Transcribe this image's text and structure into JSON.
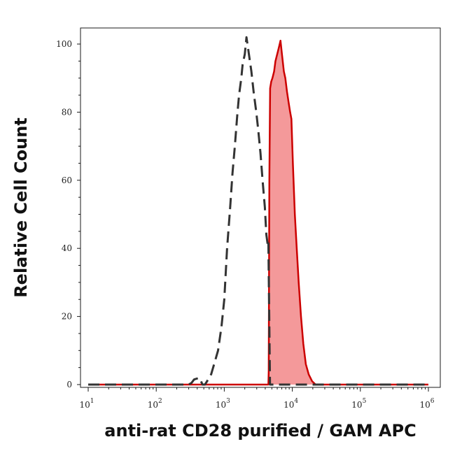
{
  "chart_data": {
    "type": "area",
    "title": "",
    "xlabel": "anti-rat CD28 purified / GAM APC",
    "ylabel": "Relative Cell Count",
    "xscale": "log",
    "xlim": [
      10,
      1000000
    ],
    "ylim": [
      0,
      100
    ],
    "x_ticks": [
      {
        "base": "10",
        "exp": "1",
        "value": 10
      },
      {
        "base": "10",
        "exp": "2",
        "value": 100
      },
      {
        "base": "10",
        "exp": "3",
        "value": 1000
      },
      {
        "base": "10",
        "exp": "4",
        "value": 10000
      },
      {
        "base": "10",
        "exp": "5",
        "value": 100000
      },
      {
        "base": "10",
        "exp": "6",
        "value": 1000000
      }
    ],
    "y_ticks": [
      "0",
      "20",
      "40",
      "60",
      "80",
      "100"
    ],
    "grid": false,
    "series": [
      {
        "style": "dashed",
        "color": "#333333",
        "fill": "none",
        "points": [
          [
            10,
            0
          ],
          [
            300,
            0
          ],
          [
            330,
            0.5
          ],
          [
            360,
            1.5
          ],
          [
            430,
            2
          ],
          [
            480,
            0
          ],
          [
            520,
            0
          ],
          [
            560,
            1
          ],
          [
            640,
            3
          ],
          [
            710,
            6
          ],
          [
            810,
            10
          ],
          [
            910,
            17
          ],
          [
            1000,
            25
          ],
          [
            1100,
            40
          ],
          [
            1220,
            52
          ],
          [
            1320,
            62
          ],
          [
            1430,
            70
          ],
          [
            1550,
            79
          ],
          [
            1650,
            85
          ],
          [
            1780,
            90
          ],
          [
            1860,
            94
          ],
          [
            2000,
            97
          ],
          [
            2120,
            102
          ],
          [
            2300,
            97
          ],
          [
            2500,
            92
          ],
          [
            2700,
            86
          ],
          [
            2950,
            80
          ],
          [
            3150,
            75
          ],
          [
            3400,
            68
          ],
          [
            3650,
            60
          ],
          [
            3950,
            52
          ],
          [
            4150,
            44
          ],
          [
            4350,
            41
          ],
          [
            4450,
            42
          ],
          [
            4700,
            0
          ],
          [
            10000,
            0
          ],
          [
            30000,
            0
          ],
          [
            1000000,
            0
          ]
        ]
      },
      {
        "style": "solid",
        "color": "#cc0000",
        "fill": "#f4999a",
        "points": [
          [
            10,
            0
          ],
          [
            4450,
            0
          ],
          [
            4500,
            4
          ],
          [
            4600,
            60
          ],
          [
            4720,
            87
          ],
          [
            4900,
            89
          ],
          [
            5100,
            90
          ],
          [
            5400,
            92
          ],
          [
            5650,
            95
          ],
          [
            6000,
            97
          ],
          [
            6350,
            99
          ],
          [
            6700,
            101
          ],
          [
            7050,
            97
          ],
          [
            7500,
            92
          ],
          [
            7900,
            90
          ],
          [
            8350,
            86
          ],
          [
            8800,
            83
          ],
          [
            9300,
            80
          ],
          [
            9700,
            78
          ],
          [
            10200,
            65
          ],
          [
            10900,
            50
          ],
          [
            11600,
            40
          ],
          [
            12400,
            30
          ],
          [
            13400,
            20
          ],
          [
            14500,
            12
          ],
          [
            15800,
            6
          ],
          [
            17400,
            3
          ],
          [
            19500,
            1
          ],
          [
            22000,
            0
          ],
          [
            1000000,
            0
          ]
        ]
      }
    ]
  }
}
